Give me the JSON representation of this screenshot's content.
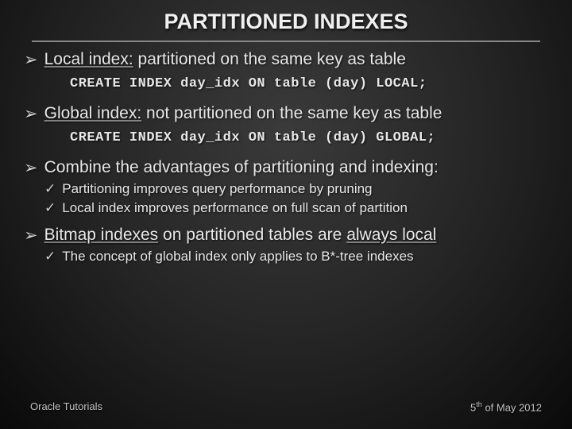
{
  "title": {
    "text": "PARTITIONED INDEXES",
    "fontsize": 27,
    "color": "#f0f0f0"
  },
  "bullets": [
    {
      "type": "arrow",
      "emph": "Local index:",
      "rest": " partitioned on the same key as table",
      "fontsize": 21
    },
    {
      "type": "code",
      "text": "CREATE INDEX day_idx ON table (day) LOCAL;",
      "fontsize": 17
    },
    {
      "type": "arrow",
      "emph": "Global index:",
      "rest": " not partitioned on the same key as table",
      "fontsize": 21
    },
    {
      "type": "code",
      "text": "CREATE INDEX day_idx ON table (day) GLOBAL;",
      "fontsize": 17
    },
    {
      "type": "arrow",
      "emph": "",
      "rest": "Combine the advantages of partitioning and indexing:",
      "fontsize": 21
    },
    {
      "type": "check",
      "text": "Partitioning improves query performance by pruning",
      "fontsize": 17
    },
    {
      "type": "check",
      "text": "Local index improves performance on full scan of partition",
      "fontsize": 17
    },
    {
      "type": "arrow",
      "emph": "Bitmap indexes",
      "rest": " on partitioned tables are ",
      "emph2": "always local",
      "fontsize": 21,
      "topgap": 12
    },
    {
      "type": "check",
      "text": "The concept of global index only applies to B*-tree indexes",
      "fontsize": 17
    }
  ],
  "footer": {
    "left": "Oracle Tutorials",
    "right_prefix": "5",
    "right_suffix": "th of May 2012",
    "fontsize": 13
  },
  "markers": {
    "arrow": "➢",
    "check": "✓"
  },
  "colors": {
    "text": "#e8e8e8",
    "bg_center": "#3a3a3a",
    "bg_edge": "#0a0a0a",
    "underline": "#888888"
  }
}
